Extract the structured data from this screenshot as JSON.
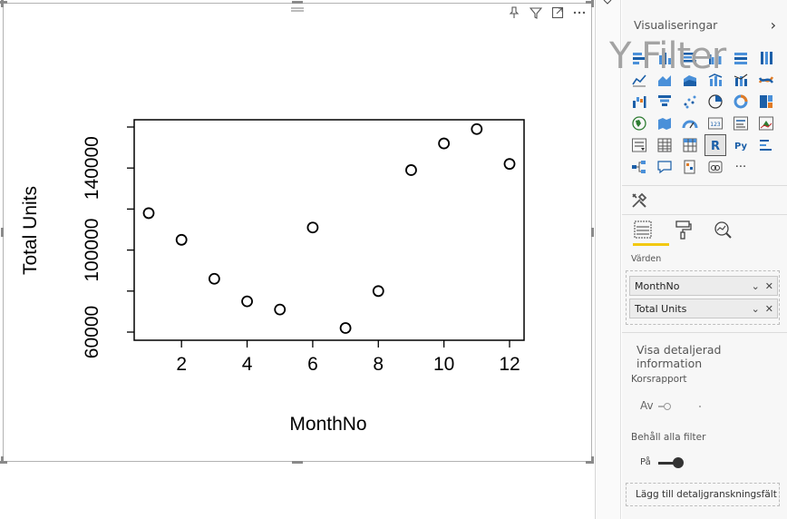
{
  "visual": {
    "header_icons": [
      "pin-icon",
      "filter-icon",
      "focus-mode-icon",
      "more-options-icon"
    ]
  },
  "pane": {
    "title": "Visualiseringar",
    "overlay_text": "Y Filter",
    "more_visuals": "···",
    "values_label": "Värden",
    "fields": [
      {
        "name": "MonthNo"
      },
      {
        "name": "Total Units"
      }
    ],
    "drillthrough_title": "Visa detaljerad information",
    "cross_report_label": "Korsrapport",
    "cross_report_value": "Av",
    "keep_filters_label": "Behåll alla filter",
    "keep_filters_value": "På",
    "drill_placeholder": "Lägg till detaljgranskningsfält här"
  },
  "chart_data": {
    "type": "scatter",
    "title": "",
    "xlabel": "MonthNo",
    "ylabel": "Total Units",
    "xlim": [
      1,
      12
    ],
    "ylim": [
      60000,
      160000
    ],
    "x_ticks": [
      2,
      4,
      6,
      8,
      10,
      12
    ],
    "y_ticks": [
      60000,
      100000,
      140000
    ],
    "y_tick_labels": [
      "60000",
      "100000",
      "140000"
    ],
    "x": [
      1,
      2,
      3,
      4,
      5,
      6,
      7,
      8,
      9,
      10,
      11,
      12
    ],
    "y": [
      118000,
      105000,
      86000,
      75000,
      71000,
      111000,
      62000,
      80000,
      139000,
      152000,
      159000,
      142000
    ],
    "grid": false
  }
}
